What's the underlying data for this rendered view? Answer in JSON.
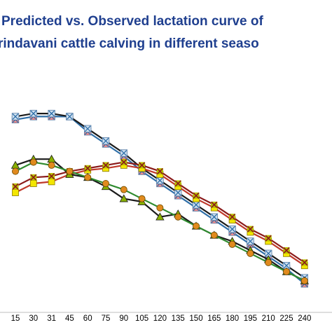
{
  "chart_data": {
    "type": "line",
    "title": "Predicted vs. Observed lactation curve of",
    "subtitle": "rindavani cattle calving in different  seaso",
    "x": [
      "15",
      "30",
      "31",
      "45",
      "60",
      "75",
      "90",
      "105",
      "120",
      "135",
      "150",
      "165",
      "180",
      "195",
      "210",
      "225",
      "240"
    ],
    "series": [
      {
        "marker": "square-x",
        "color": "#f08a8a",
        "line_color": "#2f6fa8",
        "values": [
          5.9,
          5.95,
          5.95,
          5.95,
          5.7,
          5.5,
          5.3,
          5.05,
          4.85,
          4.65,
          4.45,
          4.25,
          4.05,
          3.85,
          3.65,
          3.45,
          3.2
        ]
      },
      {
        "marker": "square-x",
        "color": "#cfe0f0",
        "line_color": "#1a1a1a",
        "values": [
          5.95,
          6.0,
          6.0,
          5.95,
          5.75,
          5.55,
          5.35,
          5.1,
          4.9,
          4.7,
          4.5,
          4.3,
          4.1,
          3.9,
          3.7,
          3.5,
          3.3
        ]
      },
      {
        "marker": "square",
        "color": "#f3e600",
        "line_color": "#c0392b",
        "values": [
          4.7,
          4.85,
          4.88,
          5.0,
          5.07,
          5.1,
          5.15,
          5.1,
          5.0,
          4.8,
          4.6,
          4.45,
          4.25,
          4.05,
          3.9,
          3.7,
          3.5
        ]
      },
      {
        "marker": "x",
        "color": "#b8c000",
        "line_color": "#8b1a1a",
        "values": [
          4.8,
          4.95,
          4.97,
          5.05,
          5.1,
          5.15,
          5.2,
          5.15,
          5.05,
          4.85,
          4.65,
          4.5,
          4.3,
          4.1,
          3.95,
          3.75,
          3.55
        ]
      },
      {
        "marker": "triangle",
        "color": "#88b000",
        "line_color": "#1a1a1a",
        "values": [
          5.15,
          5.25,
          5.25,
          5.0,
          4.95,
          4.8,
          4.6,
          4.55,
          4.3,
          4.35,
          4.15,
          4.0,
          3.9,
          3.75,
          3.6,
          3.4,
          3.25
        ]
      },
      {
        "marker": "circle",
        "color": "#e08a1e",
        "line_color": "#2e8b2e",
        "values": [
          5.05,
          5.2,
          5.15,
          5.05,
          4.95,
          4.85,
          4.75,
          4.6,
          4.45,
          4.3,
          4.15,
          4.0,
          3.85,
          3.7,
          3.55,
          3.4,
          3.25
        ]
      }
    ]
  }
}
